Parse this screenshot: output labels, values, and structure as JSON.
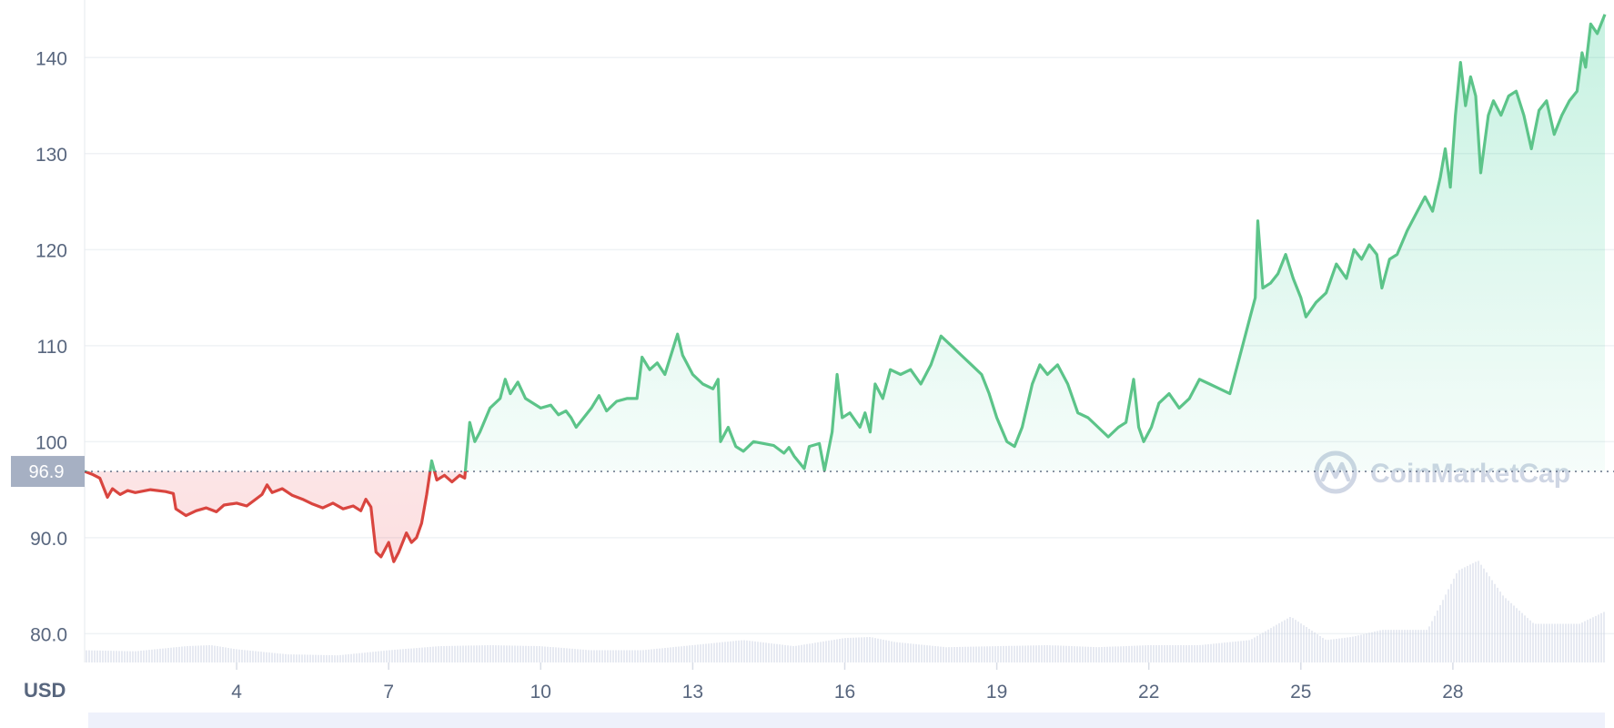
{
  "chart_data": {
    "type": "area",
    "currency_label": "USD",
    "watermark": "CoinMarketCap",
    "reference_value": 96.9,
    "reference_label": "96.9",
    "ylim": [
      77,
      146
    ],
    "y_ticks": [
      {
        "value": 80,
        "label": "80.0"
      },
      {
        "value": 90,
        "label": "90.0"
      },
      {
        "value": 100,
        "label": "100"
      },
      {
        "value": 110,
        "label": "110"
      },
      {
        "value": 120,
        "label": "120"
      },
      {
        "value": 130,
        "label": "130"
      },
      {
        "value": 140,
        "label": "140"
      }
    ],
    "xlim": [
      1,
      31
    ],
    "x_ticks": [
      {
        "value": 4,
        "label": "4"
      },
      {
        "value": 7,
        "label": "7"
      },
      {
        "value": 10,
        "label": "10"
      },
      {
        "value": 13,
        "label": "13"
      },
      {
        "value": 16,
        "label": "16"
      },
      {
        "value": 19,
        "label": "19"
      },
      {
        "value": 22,
        "label": "22"
      },
      {
        "value": 25,
        "label": "25"
      },
      {
        "value": 28,
        "label": "28"
      }
    ],
    "colors": {
      "up": "#16c784",
      "up_line": "#5cc489",
      "down": "#d9453f",
      "grid": "#eff2f5",
      "axis_text": "#58667e",
      "ref_badge": "#a6b0c3",
      "volume": "#cfd6e4",
      "navigator": "#eef1fb"
    },
    "series": [
      {
        "values": [
          [
            1.0,
            96.9
          ],
          [
            1.15,
            96.6
          ],
          [
            1.3,
            96.2
          ],
          [
            1.45,
            94.2
          ],
          [
            1.55,
            95.1
          ],
          [
            1.7,
            94.5
          ],
          [
            1.85,
            94.9
          ],
          [
            2.0,
            94.7
          ],
          [
            2.3,
            95.0
          ],
          [
            2.6,
            94.8
          ],
          [
            2.75,
            94.6
          ],
          [
            2.8,
            93.0
          ],
          [
            3.0,
            92.3
          ],
          [
            3.2,
            92.8
          ],
          [
            3.4,
            93.1
          ],
          [
            3.6,
            92.7
          ],
          [
            3.75,
            93.4
          ],
          [
            4.0,
            93.6
          ],
          [
            4.2,
            93.3
          ],
          [
            4.4,
            94.1
          ],
          [
            4.5,
            94.5
          ],
          [
            4.6,
            95.5
          ],
          [
            4.7,
            94.7
          ],
          [
            4.9,
            95.1
          ],
          [
            5.1,
            94.4
          ],
          [
            5.3,
            94.0
          ],
          [
            5.5,
            93.5
          ],
          [
            5.7,
            93.1
          ],
          [
            5.9,
            93.6
          ],
          [
            6.1,
            93.0
          ],
          [
            6.3,
            93.3
          ],
          [
            6.45,
            92.8
          ],
          [
            6.55,
            94.0
          ],
          [
            6.65,
            93.2
          ],
          [
            6.75,
            88.5
          ],
          [
            6.85,
            88.0
          ],
          [
            7.0,
            89.5
          ],
          [
            7.1,
            87.5
          ],
          [
            7.2,
            88.5
          ],
          [
            7.35,
            90.5
          ],
          [
            7.45,
            89.5
          ],
          [
            7.55,
            90.0
          ],
          [
            7.65,
            91.5
          ],
          [
            7.75,
            94.5
          ],
          [
            7.85,
            98.0
          ],
          [
            7.95,
            96.0
          ],
          [
            8.1,
            96.5
          ],
          [
            8.25,
            95.8
          ],
          [
            8.4,
            96.5
          ],
          [
            8.5,
            96.2
          ],
          [
            8.6,
            102.0
          ],
          [
            8.7,
            100.0
          ],
          [
            8.8,
            101.0
          ],
          [
            9.0,
            103.5
          ],
          [
            9.2,
            104.5
          ],
          [
            9.3,
            106.5
          ],
          [
            9.4,
            105.0
          ],
          [
            9.55,
            106.2
          ],
          [
            9.7,
            104.5
          ],
          [
            9.85,
            104.0
          ],
          [
            10.0,
            103.5
          ],
          [
            10.2,
            103.8
          ],
          [
            10.35,
            102.8
          ],
          [
            10.5,
            103.2
          ],
          [
            10.6,
            102.5
          ],
          [
            10.7,
            101.5
          ],
          [
            10.85,
            102.5
          ],
          [
            11.0,
            103.5
          ],
          [
            11.15,
            104.8
          ],
          [
            11.3,
            103.2
          ],
          [
            11.5,
            104.2
          ],
          [
            11.7,
            104.5
          ],
          [
            11.9,
            104.5
          ],
          [
            12.0,
            108.8
          ],
          [
            12.15,
            107.5
          ],
          [
            12.3,
            108.2
          ],
          [
            12.45,
            107.0
          ],
          [
            12.6,
            109.5
          ],
          [
            12.7,
            111.2
          ],
          [
            12.8,
            109.0
          ],
          [
            13.0,
            107.0
          ],
          [
            13.2,
            106.0
          ],
          [
            13.4,
            105.5
          ],
          [
            13.5,
            106.5
          ],
          [
            13.55,
            100.0
          ],
          [
            13.7,
            101.5
          ],
          [
            13.85,
            99.5
          ],
          [
            14.0,
            99.0
          ],
          [
            14.2,
            100.0
          ],
          [
            14.4,
            99.8
          ],
          [
            14.6,
            99.6
          ],
          [
            14.8,
            98.8
          ],
          [
            14.9,
            99.4
          ],
          [
            15.0,
            98.5
          ],
          [
            15.2,
            97.2
          ],
          [
            15.3,
            99.5
          ],
          [
            15.5,
            99.8
          ],
          [
            15.6,
            97.0
          ],
          [
            15.75,
            101.0
          ],
          [
            15.85,
            107.0
          ],
          [
            15.95,
            102.5
          ],
          [
            16.1,
            103.0
          ],
          [
            16.3,
            101.5
          ],
          [
            16.4,
            103.0
          ],
          [
            16.5,
            101.0
          ],
          [
            16.6,
            106.0
          ],
          [
            16.75,
            104.5
          ],
          [
            16.9,
            107.5
          ],
          [
            17.1,
            107.0
          ],
          [
            17.3,
            107.5
          ],
          [
            17.5,
            106.0
          ],
          [
            17.7,
            108.0
          ],
          [
            17.9,
            111.0
          ],
          [
            18.1,
            110.0
          ],
          [
            18.3,
            109.0
          ],
          [
            18.5,
            108.0
          ],
          [
            18.7,
            107.0
          ],
          [
            18.85,
            105.0
          ],
          [
            19.0,
            102.5
          ],
          [
            19.2,
            100.0
          ],
          [
            19.35,
            99.5
          ],
          [
            19.5,
            101.5
          ],
          [
            19.7,
            106.0
          ],
          [
            19.85,
            108.0
          ],
          [
            20.0,
            107.0
          ],
          [
            20.2,
            108.0
          ],
          [
            20.4,
            106.0
          ],
          [
            20.6,
            103.0
          ],
          [
            20.8,
            102.5
          ],
          [
            21.0,
            101.5
          ],
          [
            21.2,
            100.5
          ],
          [
            21.4,
            101.5
          ],
          [
            21.55,
            102.0
          ],
          [
            21.7,
            106.5
          ],
          [
            21.8,
            101.5
          ],
          [
            21.9,
            100.0
          ],
          [
            22.05,
            101.5
          ],
          [
            22.2,
            104.0
          ],
          [
            22.4,
            105.0
          ],
          [
            22.6,
            103.5
          ],
          [
            22.8,
            104.5
          ],
          [
            23.0,
            106.5
          ],
          [
            23.2,
            106.0
          ],
          [
            23.4,
            105.5
          ],
          [
            23.6,
            105.0
          ],
          [
            23.8,
            109.0
          ],
          [
            24.0,
            113.0
          ],
          [
            24.1,
            115.0
          ],
          [
            24.15,
            123.0
          ],
          [
            24.25,
            116.0
          ],
          [
            24.4,
            116.5
          ],
          [
            24.55,
            117.5
          ],
          [
            24.7,
            119.5
          ],
          [
            24.85,
            117.0
          ],
          [
            25.0,
            115.0
          ],
          [
            25.1,
            113.0
          ],
          [
            25.3,
            114.5
          ],
          [
            25.5,
            115.5
          ],
          [
            25.7,
            118.5
          ],
          [
            25.9,
            117.0
          ],
          [
            26.05,
            120.0
          ],
          [
            26.2,
            119.0
          ],
          [
            26.35,
            120.5
          ],
          [
            26.5,
            119.5
          ],
          [
            26.6,
            116.0
          ],
          [
            26.75,
            119.0
          ],
          [
            26.9,
            119.5
          ],
          [
            27.1,
            122.0
          ],
          [
            27.3,
            124.0
          ],
          [
            27.45,
            125.5
          ],
          [
            27.6,
            124.0
          ],
          [
            27.75,
            127.5
          ],
          [
            27.85,
            130.5
          ],
          [
            27.95,
            126.5
          ],
          [
            28.05,
            134.0
          ],
          [
            28.15,
            139.5
          ],
          [
            28.25,
            135.0
          ],
          [
            28.35,
            138.0
          ],
          [
            28.45,
            136.0
          ],
          [
            28.55,
            128.0
          ],
          [
            28.7,
            134.0
          ],
          [
            28.8,
            135.5
          ],
          [
            28.95,
            134.0
          ],
          [
            29.1,
            136.0
          ],
          [
            29.25,
            136.5
          ],
          [
            29.4,
            134.0
          ],
          [
            29.55,
            130.5
          ],
          [
            29.7,
            134.5
          ],
          [
            29.85,
            135.5
          ],
          [
            30.0,
            132.0
          ],
          [
            30.15,
            134.0
          ],
          [
            30.3,
            135.5
          ],
          [
            30.45,
            136.5
          ],
          [
            30.55,
            140.5
          ],
          [
            30.62,
            139.0
          ],
          [
            30.72,
            143.5
          ],
          [
            30.85,
            142.5
          ],
          [
            31.0,
            144.5
          ]
        ]
      }
    ],
    "volume": [
      [
        1.0,
        0.12
      ],
      [
        2.0,
        0.11
      ],
      [
        3.0,
        0.16
      ],
      [
        3.5,
        0.17
      ],
      [
        4.0,
        0.13
      ],
      [
        5.0,
        0.08
      ],
      [
        6.0,
        0.07
      ],
      [
        7.0,
        0.12
      ],
      [
        8.0,
        0.16
      ],
      [
        9.0,
        0.17
      ],
      [
        10.0,
        0.16
      ],
      [
        11.0,
        0.12
      ],
      [
        12.0,
        0.12
      ],
      [
        13.0,
        0.17
      ],
      [
        14.0,
        0.22
      ],
      [
        15.0,
        0.16
      ],
      [
        16.0,
        0.24
      ],
      [
        16.5,
        0.25
      ],
      [
        17.0,
        0.2
      ],
      [
        18.0,
        0.15
      ],
      [
        19.0,
        0.16
      ],
      [
        20.0,
        0.17
      ],
      [
        21.0,
        0.15
      ],
      [
        22.0,
        0.17
      ],
      [
        23.0,
        0.17
      ],
      [
        24.0,
        0.22
      ],
      [
        24.8,
        0.45
      ],
      [
        25.5,
        0.22
      ],
      [
        26.0,
        0.25
      ],
      [
        26.6,
        0.32
      ],
      [
        27.5,
        0.32
      ],
      [
        28.1,
        0.9
      ],
      [
        28.5,
        1.0
      ],
      [
        29.0,
        0.65
      ],
      [
        29.6,
        0.38
      ],
      [
        30.5,
        0.38
      ],
      [
        31.0,
        0.5
      ]
    ]
  }
}
